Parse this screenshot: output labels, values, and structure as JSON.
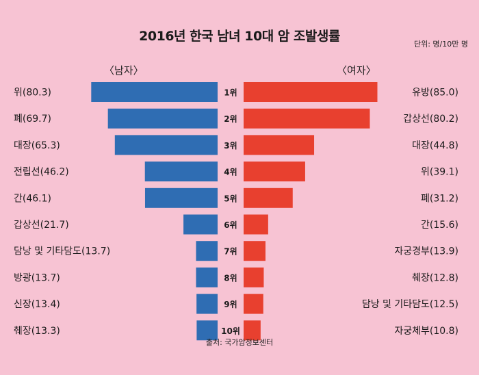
{
  "title": "2016년 한국 남녀 10대 암 조발생률",
  "unit": "단위: 명/10만 명",
  "source": "출처: 국가암정보센터",
  "colors": {
    "background": "#f7c3d3",
    "male_bar": "#2f6db3",
    "female_bar": "#e8402f"
  },
  "chart_data": {
    "type": "bar",
    "orientation": "horizontal",
    "ranks": [
      "1위",
      "2위",
      "3위",
      "4위",
      "5위",
      "6위",
      "7위",
      "8위",
      "9위",
      "10위"
    ],
    "series": [
      {
        "name": "〈남자〉",
        "side": "left",
        "labels": [
          "위(80.3)",
          "폐(69.7)",
          "대장(65.3)",
          "전립선(46.2)",
          "간(46.1)",
          "갑상선(21.7)",
          "담낭 및 기타담도(13.7)",
          "방광(13.7)",
          "신장(13.4)",
          "췌장(13.3)"
        ],
        "values": [
          80.3,
          69.7,
          65.3,
          46.2,
          46.1,
          21.7,
          13.7,
          13.7,
          13.4,
          13.3
        ]
      },
      {
        "name": "〈여자〉",
        "side": "right",
        "labels": [
          "유방(85.0)",
          "갑상선(80.2)",
          "대장(44.8)",
          "위(39.1)",
          "폐(31.2)",
          "간(15.6)",
          "자궁경부(13.9)",
          "췌장(12.8)",
          "담낭 및 기타담도(12.5)",
          "자궁체부(10.8)"
        ],
        "values": [
          85.0,
          80.2,
          44.8,
          39.1,
          31.2,
          15.6,
          13.9,
          12.8,
          12.5,
          10.8
        ]
      }
    ]
  }
}
